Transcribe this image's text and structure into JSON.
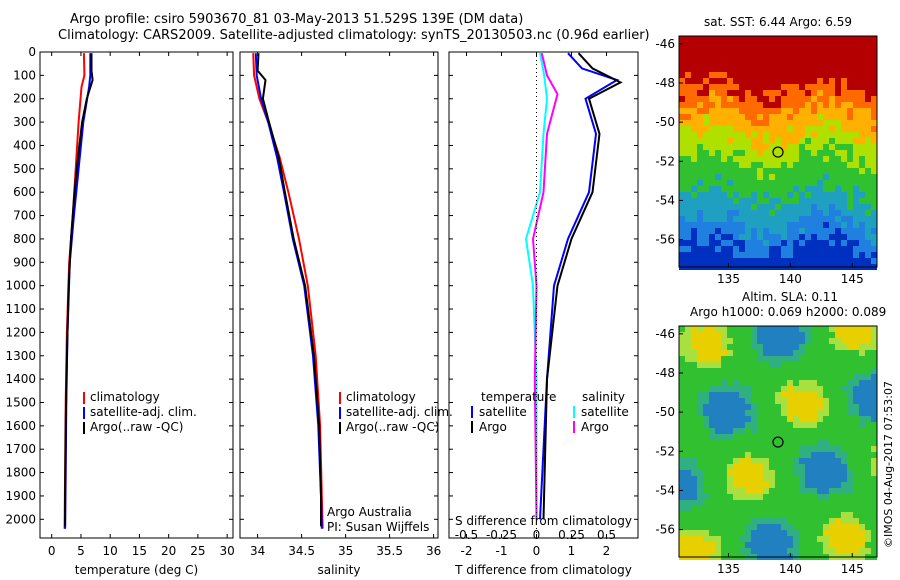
{
  "header": {
    "line1": "Argo profile: csiro 5903670_81 03-May-2013 51.529S 139E (DM data)",
    "line2": "Climatology: CARS2009. Satellite-adjusted climatology: synTS_20130503.nc (0.96d earlier)"
  },
  "timestamp": "©IMOS 04-Aug-2017 07:53:07",
  "colors": {
    "climatology": "#ff0000",
    "satellite": "#0000ff",
    "argo": "#000000",
    "s_satellite": "#00ffff",
    "s_argo": "#ff00ff"
  },
  "chart_data": [
    {
      "type": "line",
      "xlabel": "temperature (deg C)",
      "xticks": [
        0,
        5,
        10,
        15,
        20,
        25,
        30
      ],
      "xlim": [
        -2,
        31
      ],
      "yticks": [
        0,
        100,
        200,
        300,
        400,
        500,
        600,
        700,
        800,
        900,
        1000,
        1100,
        1200,
        1300,
        1400,
        1500,
        1600,
        1700,
        1800,
        1900,
        2000
      ],
      "ylim": [
        2080,
        0
      ],
      "legend": [
        "climatology",
        "satellite-adj. clim.",
        "Argo(..raw -QC)"
      ],
      "series": [
        {
          "name": "climatology",
          "color": "#ff0000",
          "points": [
            [
              5.5,
              5
            ],
            [
              5.6,
              100
            ],
            [
              5.1,
              150
            ],
            [
              4.6,
              300
            ],
            [
              4.1,
              500
            ],
            [
              3.6,
              700
            ],
            [
              3.0,
              900
            ],
            [
              2.6,
              1200
            ],
            [
              2.4,
              1500
            ],
            [
              2.3,
              1800
            ],
            [
              2.2,
              2040
            ]
          ]
        },
        {
          "name": "satellite-adj. clim.",
          "color": "#0000ff",
          "points": [
            [
              6.6,
              5
            ],
            [
              6.6,
              100
            ],
            [
              6.4,
              150
            ],
            [
              5.4,
              300
            ],
            [
              4.6,
              500
            ],
            [
              3.8,
              700
            ],
            [
              3.1,
              900
            ],
            [
              2.7,
              1200
            ],
            [
              2.5,
              1500
            ],
            [
              2.4,
              1800
            ],
            [
              2.3,
              2040
            ]
          ]
        },
        {
          "name": "Argo(..raw -QC)",
          "color": "#000000",
          "points": [
            [
              6.8,
              5
            ],
            [
              6.8,
              80
            ],
            [
              7.0,
              120
            ],
            [
              6.0,
              200
            ],
            [
              5.2,
              300
            ],
            [
              4.5,
              450
            ],
            [
              3.9,
              600
            ],
            [
              3.3,
              800
            ],
            [
              2.9,
              1000
            ],
            [
              2.6,
              1300
            ],
            [
              2.4,
              1600
            ],
            [
              2.3,
              1900
            ],
            [
              2.3,
              2030
            ]
          ]
        }
      ]
    },
    {
      "type": "line",
      "xlabel": "salinity",
      "xticks": [
        34,
        34.5,
        35,
        35.5,
        36
      ],
      "xlim": [
        33.8,
        36.05
      ],
      "ylim": [
        2080,
        0
      ],
      "legend": [
        "climatology",
        "satellite-adj. clim.",
        "Argo(..raw -QC)"
      ],
      "annotation": [
        "Argo Australia",
        "PI: Susan Wijffels"
      ],
      "series": [
        {
          "name": "climatology",
          "color": "#ff0000",
          "points": [
            [
              33.95,
              5
            ],
            [
              33.96,
              100
            ],
            [
              34.02,
              200
            ],
            [
              34.12,
              300
            ],
            [
              34.25,
              450
            ],
            [
              34.35,
              600
            ],
            [
              34.47,
              800
            ],
            [
              34.57,
              1000
            ],
            [
              34.66,
              1300
            ],
            [
              34.71,
              1600
            ],
            [
              34.73,
              1900
            ],
            [
              34.74,
              2040
            ]
          ]
        },
        {
          "name": "satellite-adj. clim.",
          "color": "#0000ff",
          "points": [
            [
              33.98,
              5
            ],
            [
              33.99,
              100
            ],
            [
              34.04,
              200
            ],
            [
              34.12,
              300
            ],
            [
              34.22,
              450
            ],
            [
              34.3,
              600
            ],
            [
              34.4,
              800
            ],
            [
              34.53,
              1000
            ],
            [
              34.63,
              1300
            ],
            [
              34.69,
              1600
            ],
            [
              34.72,
              1900
            ],
            [
              34.73,
              2040
            ]
          ]
        },
        {
          "name": "Argo(..raw -QC)",
          "color": "#000000",
          "points": [
            [
              34.01,
              5
            ],
            [
              34.0,
              80
            ],
            [
              34.09,
              120
            ],
            [
              34.06,
              200
            ],
            [
              34.13,
              300
            ],
            [
              34.24,
              450
            ],
            [
              34.31,
              600
            ],
            [
              34.41,
              800
            ],
            [
              34.54,
              1000
            ],
            [
              34.64,
              1300
            ],
            [
              34.7,
              1600
            ],
            [
              34.72,
              1900
            ],
            [
              34.72,
              2030
            ]
          ]
        }
      ]
    },
    {
      "type": "line",
      "xlabel": "T difference from climatology",
      "xticks": [
        -2,
        -1,
        0,
        1,
        2
      ],
      "xlim": [
        -2.5,
        2.9
      ],
      "top_axis_label": "S difference from climatology",
      "top_ticks": [
        {
          "v": -0.5,
          "t": "-0.5"
        },
        {
          "v": -0.25,
          "t": "-0.25"
        },
        {
          "v": 0,
          "t": "0"
        },
        {
          "v": 0.25,
          "t": "0.25"
        },
        {
          "v": 0.5,
          "t": "0.5"
        }
      ],
      "ylim": [
        2080,
        0
      ],
      "legend_temperature": {
        "title": "temperature",
        "items": [
          "satellite",
          "Argo"
        ]
      },
      "legend_salinity": {
        "title": "salinity",
        "items": [
          "satellite",
          "Argo"
        ]
      },
      "series": [
        {
          "name": "T satellite",
          "color": "#0000ff",
          "points": [
            [
              0.9,
              5
            ],
            [
              1.3,
              70
            ],
            [
              2.3,
              120
            ],
            [
              1.4,
              200
            ],
            [
              1.7,
              350
            ],
            [
              1.5,
              600
            ],
            [
              0.9,
              800
            ],
            [
              0.5,
              1000
            ],
            [
              0.3,
              1400
            ],
            [
              0.1,
              2000
            ]
          ]
        },
        {
          "name": "T Argo",
          "color": "#000000",
          "points": [
            [
              1.2,
              5
            ],
            [
              1.6,
              70
            ],
            [
              2.4,
              130
            ],
            [
              1.5,
              200
            ],
            [
              1.8,
              350
            ],
            [
              1.6,
              600
            ],
            [
              1.0,
              800
            ],
            [
              0.6,
              1000
            ],
            [
              0.3,
              1400
            ],
            [
              0.2,
              2000
            ]
          ]
        },
        {
          "name": "S satellite",
          "color": "#00ffff",
          "points": [
            [
              0.1,
              5
            ],
            [
              0.22,
              100
            ],
            [
              0.3,
              200
            ],
            [
              0.2,
              350
            ],
            [
              0.1,
              600
            ],
            [
              -0.3,
              800
            ],
            [
              -0.1,
              1000
            ],
            [
              0.0,
              1400
            ],
            [
              0.0,
              2000
            ]
          ]
        },
        {
          "name": "S Argo",
          "color": "#ff00ff",
          "points": [
            [
              0.15,
              5
            ],
            [
              0.3,
              100
            ],
            [
              0.6,
              180
            ],
            [
              0.3,
              350
            ],
            [
              0.2,
              600
            ],
            [
              -0.1,
              800
            ],
            [
              0.0,
              1000
            ],
            [
              -0.05,
              1400
            ],
            [
              0.0,
              2000
            ]
          ]
        }
      ]
    },
    {
      "type": "heatmap",
      "title": "sat. SST: 6.44  Argo: 6.59",
      "xticks": [
        135,
        140,
        145
      ],
      "yticks": [
        -46,
        -48,
        -50,
        -52,
        -54,
        -56
      ],
      "xlim": [
        131,
        147
      ],
      "ylim": [
        -45.6,
        -57.4
      ],
      "marker": {
        "lon": 139,
        "lat": -51.529
      }
    },
    {
      "type": "heatmap",
      "title": [
        "Altim. SLA: 0.11",
        "Argo h1000: 0.069 h2000: 0.089"
      ],
      "xticks": [
        135,
        140,
        145
      ],
      "yticks": [
        -46,
        -48,
        -50,
        -52,
        -54,
        -56
      ],
      "xlim": [
        131,
        147
      ],
      "ylim": [
        -45.6,
        -57.4
      ],
      "marker": {
        "lon": 139,
        "lat": -51.529
      }
    }
  ]
}
